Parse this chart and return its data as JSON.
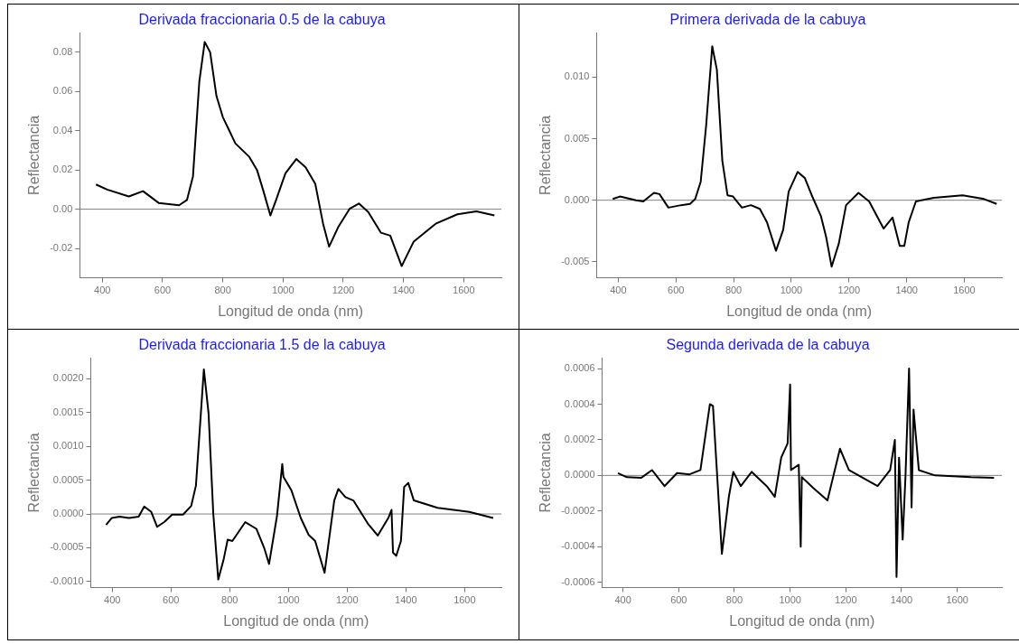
{
  "chart_data": [
    {
      "type": "line",
      "title": "Derivada fraccionaria 0.5 de la cabuya",
      "xlabel": "Longitud de onda (nm)",
      "ylabel": "Reflectancia",
      "marker": "none",
      "xlim": [
        325,
        1725
      ],
      "xticks": [
        400,
        600,
        800,
        1000,
        1200,
        1400,
        1600
      ],
      "ylim": [
        -0.035,
        0.09
      ],
      "yticks": [
        {
          "value": -0.02,
          "label": "-0.02"
        },
        {
          "value": 0,
          "label": "0.00"
        },
        {
          "value": 0.02,
          "label": "0.02"
        },
        {
          "value": 0.04,
          "label": "0.04"
        },
        {
          "value": 0.06,
          "label": "0.06"
        },
        {
          "value": 0.08,
          "label": "0.08"
        }
      ],
      "ref_lines": [
        {
          "axis": "y",
          "value": 0,
          "color": "#808080"
        }
      ],
      "series": [
        {
          "color": "#000000",
          "x": [
            379,
            416,
            488,
            535,
            587,
            655,
            681,
            701,
            722,
            740,
            758,
            779,
            800,
            842,
            888,
            914,
            935,
            958,
            977,
            1008,
            1044,
            1075,
            1107,
            1133,
            1153,
            1184,
            1221,
            1252,
            1283,
            1325,
            1356,
            1394,
            1434,
            1507,
            1579,
            1642,
            1702
          ],
          "values": [
            0.0126,
            0.01,
            0.0065,
            0.0092,
            0.0032,
            0.002,
            0.0047,
            0.0168,
            0.065,
            0.0853,
            0.08,
            0.0577,
            0.047,
            0.0335,
            0.0267,
            0.0198,
            0.0092,
            -0.0032,
            0.0047,
            0.0183,
            0.0256,
            0.0214,
            0.013,
            -0.0074,
            -0.0191,
            -0.0089,
            0.0002,
            0.0029,
            -0.0014,
            -0.012,
            -0.0135,
            -0.029,
            -0.0165,
            -0.0074,
            -0.0026,
            -0.0011,
            -0.0032
          ]
        }
      ]
    },
    {
      "type": "line",
      "title": "Primera derivada de la cabuya",
      "xlabel": "Longitud de onda (nm)",
      "ylabel": "Reflectancia",
      "marker": "none",
      "xlim": [
        325,
        1730
      ],
      "xticks": [
        400,
        600,
        800,
        1000,
        1200,
        1400,
        1600
      ],
      "ylim": [
        -0.0063,
        0.0136
      ],
      "yticks": [
        {
          "value": -0.005,
          "label": "-0.005"
        },
        {
          "value": 0,
          "label": "0.000"
        },
        {
          "value": 0.005,
          "label": "0.005"
        },
        {
          "value": 0.01,
          "label": "0.010"
        }
      ],
      "ref_lines": [
        {
          "axis": "y",
          "value": 0,
          "color": "#808080"
        }
      ],
      "series": [
        {
          "color": "#000000",
          "x": [
            381,
            406,
            462,
            487,
            524,
            543,
            574,
            618,
            649,
            667,
            686,
            705,
            726,
            742,
            761,
            779,
            798,
            829,
            860,
            891,
            916,
            947,
            972,
            991,
            1022,
            1047,
            1071,
            1103,
            1121,
            1140,
            1165,
            1190,
            1233,
            1270,
            1320,
            1351,
            1376,
            1392,
            1407,
            1432,
            1494,
            1594,
            1668,
            1712
          ],
          "values": [
            0.0001,
            0.0003,
            0,
            -0.0001,
            0.0006,
            0.0005,
            -0.0006,
            -0.0004,
            -0.0003,
            0.0001,
            0.0015,
            0.0061,
            0.0125,
            0.0106,
            0.0032,
            0.0004,
            0.0003,
            -0.0006,
            -0.0004,
            -0.0007,
            -0.0018,
            -0.0041,
            -0.0024,
            0.0007,
            0.0023,
            0.0018,
            0.0004,
            -0.0013,
            -0.003,
            -0.0054,
            -0.0035,
            -0.0004,
            0.0006,
            -0.0001,
            -0.0023,
            -0.0014,
            -0.0037,
            -0.0037,
            -0.0018,
            -0.0001,
            0.0002,
            0.0004,
            0.0001,
            -0.0003
          ]
        }
      ]
    },
    {
      "type": "line",
      "title": "Derivada fraccionaria 1.5 de la cabuya",
      "xlabel": "Longitud de onda (nm)",
      "ylabel": "Reflectancia",
      "marker": "none",
      "xlim": [
        327,
        1725
      ],
      "xticks": [
        400,
        600,
        800,
        1000,
        1200,
        1400,
        1600
      ],
      "ylim": [
        -0.00109,
        0.00231
      ],
      "yticks": [
        {
          "value": -0.001,
          "label": "-0.0010"
        },
        {
          "value": -0.0005,
          "label": "-0.0005"
        },
        {
          "value": 0,
          "label": "0.0000"
        },
        {
          "value": 0.0005,
          "label": "0.0005"
        },
        {
          "value": 0.001,
          "label": "0.0010"
        },
        {
          "value": 0.0015,
          "label": "0.0015"
        },
        {
          "value": 0.002,
          "label": "0.0020"
        }
      ],
      "ref_lines": [
        {
          "axis": "y",
          "value": 0,
          "color": "#808080"
        }
      ],
      "series": [
        {
          "color": "#000000",
          "x": [
            379,
            398,
            425,
            457,
            490,
            509,
            533,
            553,
            577,
            604,
            641,
            669,
            685,
            712,
            728,
            744,
            761,
            780,
            793,
            809,
            853,
            891,
            918,
            934,
            961,
            979,
            983,
            1010,
            1042,
            1069,
            1091,
            1123,
            1156,
            1170,
            1194,
            1221,
            1270,
            1304,
            1340,
            1351,
            1356,
            1367,
            1383,
            1394,
            1408,
            1427,
            1508,
            1616,
            1697
          ],
          "values": [
            -0.00016,
            -6e-05,
            -4e-05,
            -6e-05,
            -4e-05,
            0.00011,
            3e-05,
            -0.00019,
            -0.00012,
            -1e-05,
            -1e-05,
            0.00012,
            0.00042,
            0.00214,
            0.00149,
            1e-05,
            -0.00097,
            -0.00066,
            -0.00038,
            -0.0004,
            -0.00012,
            -0.00022,
            -0.00051,
            -0.00074,
            -3e-05,
            0.00074,
            0.00055,
            0.00035,
            -6e-05,
            -0.00031,
            -0.0004,
            -0.00087,
            0.0002,
            0.00037,
            0.00025,
            0.0002,
            -0.00014,
            -0.00032,
            -6e-05,
            6e-05,
            -0.00057,
            -0.00062,
            -0.0004,
            0.0004,
            0.00046,
            0.0002,
            9e-05,
            3e-05,
            -6e-05
          ]
        }
      ]
    },
    {
      "type": "line",
      "title": "Segunda derivada de la cabuya",
      "xlabel": "Longitud de onda (nm)",
      "ylabel": "Reflectancia",
      "marker": "none",
      "xlim": [
        325,
        1760
      ],
      "xticks": [
        400,
        600,
        800,
        1000,
        1200,
        1400,
        1600
      ],
      "ylim": [
        -0.00063,
        0.00066
      ],
      "yticks": [
        {
          "value": -0.0006,
          "label": "-0.0006"
        },
        {
          "value": -0.0004,
          "label": "-0.0004"
        },
        {
          "value": -0.0002,
          "label": "-0.0002"
        },
        {
          "value": 0,
          "label": "0.0000"
        },
        {
          "value": 0.0002,
          "label": "0.0002"
        },
        {
          "value": 0.0004,
          "label": "0.0004"
        },
        {
          "value": 0.0006,
          "label": "0.0006"
        }
      ],
      "ref_lines": [
        {
          "axis": "y",
          "value": 0,
          "color": "#808080"
        }
      ],
      "series": [
        {
          "color": "#000000",
          "x": [
            382,
            414,
            466,
            504,
            549,
            594,
            639,
            678,
            712,
            723,
            755,
            780,
            796,
            823,
            862,
            916,
            945,
            968,
            991,
            1000,
            1003,
            1031,
            1038,
            1042,
            1083,
            1134,
            1179,
            1211,
            1314,
            1359,
            1376,
            1382,
            1391,
            1404,
            1414,
            1427,
            1436,
            1443,
            1462,
            1520,
            1649,
            1732
          ],
          "values": [
            1.3e-05,
            -1e-05,
            -1.3e-05,
            3e-05,
            -6e-05,
            1.3e-05,
            6e-06,
            3e-05,
            0.0004,
            0.00039,
            -0.00044,
            -0.00012,
            2e-05,
            -6e-05,
            2e-05,
            -6e-05,
            -0.00012,
            0.0001,
            0.00018,
            0.00051,
            3e-05,
            6e-05,
            -0.0004,
            -1e-05,
            -7e-05,
            -0.00014,
            0.00015,
            3e-05,
            -6e-05,
            3e-05,
            0.0002,
            -0.00057,
            0.0001,
            -0.00036,
            -1e-05,
            0.0006,
            -0.00018,
            0.00037,
            3e-05,
            0,
            -1e-05,
            -1.3e-05
          ]
        }
      ]
    }
  ]
}
